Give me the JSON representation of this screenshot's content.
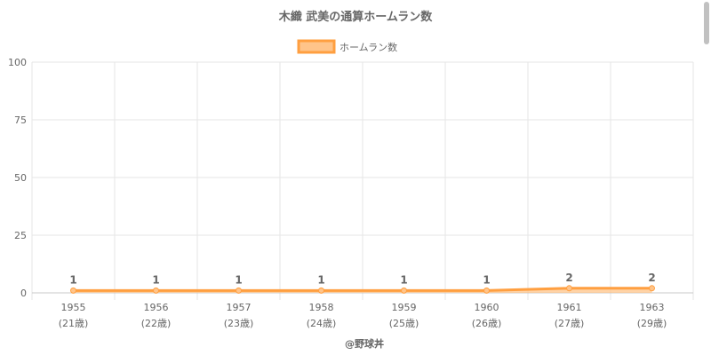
{
  "chart_data": {
    "type": "area",
    "title": "木織 武美の通算ホームラン数",
    "categories": [
      "1955",
      "1956",
      "1957",
      "1958",
      "1959",
      "1960",
      "1961",
      "1963"
    ],
    "category_sublabels": [
      "(21歳)",
      "(22歳)",
      "(23歳)",
      "(24歳)",
      "(25歳)",
      "(26歳)",
      "(27歳)",
      "(29歳)"
    ],
    "series": [
      {
        "name": "ホームラン数",
        "values": [
          1,
          1,
          1,
          1,
          1,
          1,
          2,
          2
        ]
      }
    ],
    "ylim": [
      0,
      100
    ],
    "yticks": [
      0,
      25,
      50,
      75,
      100
    ],
    "grid": true,
    "legend_position": "top",
    "data_labels": true,
    "colors": {
      "line": "#ff9f40",
      "fill": "#ffc48a",
      "grid": "#e6e6e6",
      "text": "#666666"
    },
    "credit": "@野球丼"
  }
}
